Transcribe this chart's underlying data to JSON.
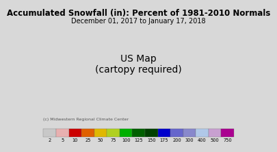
{
  "title": "Accumulated Snowfall (in): Percent of 1981-2010 Normals",
  "subtitle": "December 01, 2017 to January 17, 2018",
  "credit": "(c) Midwestern Regional Climate Center",
  "colorbar_labels": [
    "2",
    "5",
    "10",
    "25",
    "50",
    "75",
    "100",
    "125",
    "150",
    "175",
    "200",
    "300",
    "400",
    "500",
    "750"
  ],
  "colorbar_colors": [
    "#c8c8c8",
    "#e8b0b0",
    "#cc0000",
    "#e06000",
    "#e0b800",
    "#b0d020",
    "#00b000",
    "#006000",
    "#004000",
    "#0000cc",
    "#6666cc",
    "#8888cc",
    "#b0c8e8",
    "#c8a0d0",
    "#aa0090"
  ],
  "bg_color": "#d8d8d8",
  "map_border_color": "#888888",
  "title_fontsize": 8.5,
  "subtitle_fontsize": 7.0,
  "credit_fontsize": 4.5,
  "label_fontsize": 4.8
}
